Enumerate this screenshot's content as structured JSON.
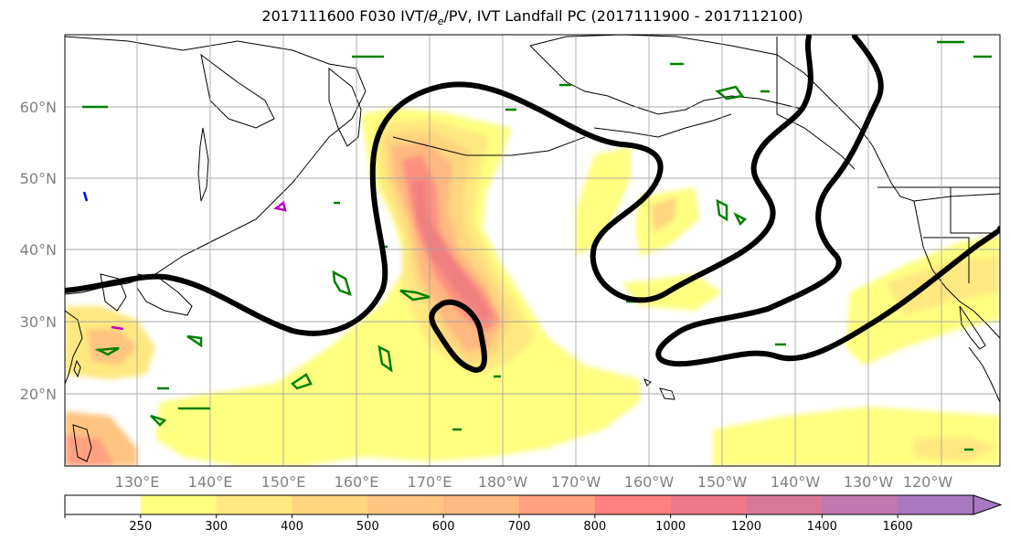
{
  "title_prefix": "2017111600 F030 IVT/",
  "title_theta": "θ",
  "title_theta_sub": "e",
  "title_suffix": "/PV, IVT Landfall PC (2017111900 - 2017112100)",
  "lat_labels": [
    "60°N",
    "50°N",
    "40°N",
    "30°N",
    "20°N"
  ],
  "lon_labels": [
    "130°E",
    "140°E",
    "150°E",
    "160°E",
    "170°E",
    "180°W",
    "170°W",
    "160°W",
    "150°W",
    "140°W",
    "130°W",
    "120°W"
  ],
  "colorbar": {
    "tick_labels": [
      "250",
      "300",
      "400",
      "500",
      "600",
      "700",
      "800",
      "1000",
      "1200",
      "1400",
      "1600"
    ],
    "colors": [
      "#ffffff",
      "#ffff80",
      "#ffe880",
      "#ffd580",
      "#ffc580",
      "#ffb880",
      "#ffa080",
      "#ff8080",
      "#f07888",
      "#d87898",
      "#c078b0",
      "#a878c0"
    ]
  },
  "colors": {
    "land_outline": "#000000",
    "grid": "#a0a0a0",
    "pv_contour": "#008000",
    "theta_e_contour": "#000000",
    "extra_contour_magenta": "#c000c0",
    "extra_contour_blue": "#0000ff"
  }
}
